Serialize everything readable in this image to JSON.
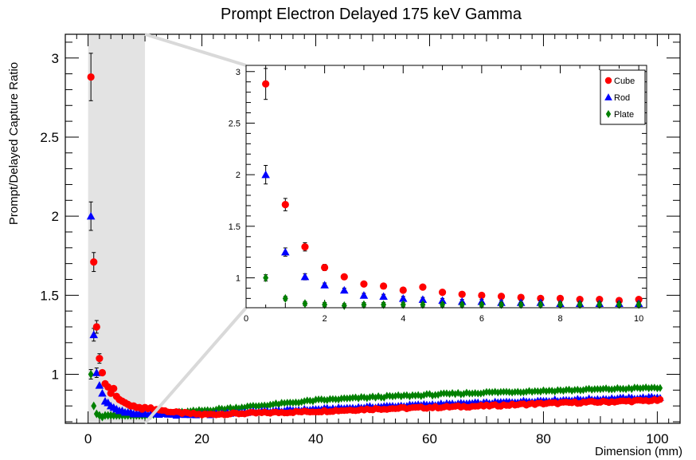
{
  "chart_data": {
    "type": "scatter",
    "title": "Prompt Electron Delayed 175 keV Gamma",
    "xlabel": "Dimension (mm)",
    "ylabel": "Prompt/Delayed Capture Ratio",
    "main": {
      "xlim": [
        -4,
        104
      ],
      "ylim": [
        0.69,
        3.15
      ],
      "xticks": [
        "0",
        "20",
        "40",
        "60",
        "80",
        "100"
      ],
      "yticks": [
        "1",
        "1.5",
        "2",
        "2.5",
        "3"
      ],
      "highlight_range": [
        0,
        10
      ]
    },
    "inset": {
      "xlim": [
        0,
        10.2
      ],
      "ylim": [
        0.71,
        3.06
      ],
      "xticks": [
        "0",
        "2",
        "4",
        "6",
        "8",
        "10"
      ],
      "yticks": [
        "1",
        "1.5",
        "2",
        "2.5",
        "3"
      ],
      "legend_position": "top-right"
    },
    "series": [
      {
        "name": "Cube",
        "marker": "circle",
        "color": "#ff0000",
        "x": [
          0.5,
          1.0,
          1.5,
          2.0,
          2.5,
          3.0,
          3.5,
          4.0,
          4.5,
          5.0,
          5.5,
          6.0,
          6.5,
          7.0,
          7.5,
          8.0,
          8.5,
          9.0,
          9.5,
          10.0
        ],
        "y": [
          2.88,
          1.71,
          1.3,
          1.1,
          1.01,
          0.94,
          0.92,
          0.88,
          0.91,
          0.86,
          0.84,
          0.83,
          0.82,
          0.81,
          0.8,
          0.8,
          0.79,
          0.79,
          0.78,
          0.79
        ],
        "err": [
          0.15,
          0.06,
          0.04,
          0.03,
          0.02,
          0.02,
          0.02,
          0.02,
          0.02,
          0.02,
          0.02,
          0.02,
          0.02,
          0.02,
          0.02,
          0.02,
          0.02,
          0.02,
          0.02,
          0.02
        ],
        "trend_far": [
          [
            10,
            0.79
          ],
          [
            15,
            0.76
          ],
          [
            20,
            0.745
          ],
          [
            30,
            0.755
          ],
          [
            40,
            0.765
          ],
          [
            50,
            0.78
          ],
          [
            60,
            0.79
          ],
          [
            70,
            0.8
          ],
          [
            80,
            0.815
          ],
          [
            90,
            0.825
          ],
          [
            100,
            0.835
          ]
        ]
      },
      {
        "name": "Rod",
        "marker": "triangle",
        "color": "#0000ff",
        "x": [
          0.5,
          1.0,
          1.5,
          2.0,
          2.5,
          3.0,
          3.5,
          4.0,
          4.5,
          5.0,
          5.5,
          6.0,
          6.5,
          7.0,
          7.5,
          8.0,
          8.5,
          9.0,
          9.5,
          10.0
        ],
        "y": [
          2.0,
          1.25,
          1.01,
          0.93,
          0.88,
          0.83,
          0.82,
          0.8,
          0.79,
          0.78,
          0.77,
          0.77,
          0.76,
          0.76,
          0.76,
          0.75,
          0.75,
          0.75,
          0.75,
          0.75
        ],
        "err": [
          0.09,
          0.04,
          0.03,
          0.02,
          0.02,
          0.02,
          0.02,
          0.02,
          0.02,
          0.02,
          0.02,
          0.02,
          0.02,
          0.02,
          0.02,
          0.02,
          0.02,
          0.02,
          0.02,
          0.02
        ],
        "trend_far": [
          [
            10,
            0.75
          ],
          [
            15,
            0.745
          ],
          [
            20,
            0.745
          ],
          [
            30,
            0.765
          ],
          [
            40,
            0.78
          ],
          [
            50,
            0.795
          ],
          [
            60,
            0.81
          ],
          [
            70,
            0.82
          ],
          [
            80,
            0.835
          ],
          [
            90,
            0.845
          ],
          [
            100,
            0.855
          ]
        ]
      },
      {
        "name": "Plate",
        "marker": "diamond",
        "color": "#008000",
        "x": [
          0.5,
          1.0,
          1.5,
          2.0,
          2.5,
          3.0,
          3.5,
          4.0,
          4.5,
          5.0,
          5.5,
          6.0,
          6.5,
          7.0,
          7.5,
          8.0,
          8.5,
          9.0,
          9.5,
          10.0
        ],
        "y": [
          1.0,
          0.8,
          0.75,
          0.74,
          0.73,
          0.74,
          0.74,
          0.74,
          0.74,
          0.74,
          0.74,
          0.74,
          0.74,
          0.74,
          0.74,
          0.74,
          0.74,
          0.74,
          0.74,
          0.74
        ],
        "err": [
          0.03,
          0.02,
          0.02,
          0.02,
          0.02,
          0.02,
          0.02,
          0.02,
          0.02,
          0.02,
          0.02,
          0.02,
          0.02,
          0.02,
          0.02,
          0.02,
          0.02,
          0.02,
          0.02,
          0.02
        ],
        "trend_far": [
          [
            10,
            0.74
          ],
          [
            15,
            0.755
          ],
          [
            20,
            0.77
          ],
          [
            30,
            0.8
          ],
          [
            40,
            0.835
          ],
          [
            50,
            0.855
          ],
          [
            60,
            0.87
          ],
          [
            70,
            0.885
          ],
          [
            80,
            0.895
          ],
          [
            90,
            0.905
          ],
          [
            100,
            0.915
          ]
        ]
      }
    ]
  }
}
